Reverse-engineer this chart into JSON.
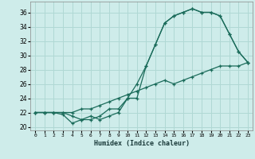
{
  "xlabel": "Humidex (Indice chaleur)",
  "bg_color": "#ceecea",
  "grid_color": "#b0d8d4",
  "line_color": "#1a6b5a",
  "xlim": [
    -0.5,
    23.5
  ],
  "ylim": [
    19.5,
    37.5
  ],
  "xticks": [
    0,
    1,
    2,
    3,
    4,
    5,
    6,
    7,
    8,
    9,
    10,
    11,
    12,
    13,
    14,
    15,
    16,
    17,
    18,
    19,
    20,
    21,
    22,
    23
  ],
  "yticks": [
    20,
    22,
    24,
    26,
    28,
    30,
    32,
    34,
    36
  ],
  "line1_x": [
    0,
    1,
    2,
    3,
    4,
    5,
    6,
    7,
    8,
    9,
    10,
    11,
    12,
    13,
    14,
    15,
    16,
    17,
    18,
    19,
    20,
    21,
    22,
    23
  ],
  "line1_y": [
    22,
    22,
    22,
    21.7,
    20.5,
    21,
    21,
    21.5,
    22.5,
    22.5,
    24,
    26,
    28.5,
    31.5,
    34.5,
    35.5,
    36,
    36.5,
    36,
    36,
    35.5,
    33,
    30.5,
    29
  ],
  "line2_x": [
    0,
    1,
    2,
    3,
    4,
    5,
    6,
    7,
    8,
    9,
    10,
    11,
    12,
    13,
    14,
    15,
    16,
    17,
    18,
    19,
    20,
    21,
    22,
    23
  ],
  "line2_y": [
    22,
    22,
    22,
    22,
    22,
    22.5,
    22.5,
    23,
    23.5,
    24,
    24.5,
    25,
    25.5,
    26,
    26.5,
    26,
    26.5,
    27,
    27.5,
    28,
    28.5,
    28.5,
    28.5,
    29
  ],
  "line3_x": [
    0,
    1,
    2,
    3,
    4,
    5,
    6,
    7,
    8,
    9,
    10,
    11,
    12,
    13,
    14,
    15,
    16,
    17,
    18,
    19,
    20,
    21,
    22,
    23
  ],
  "line3_y": [
    22,
    22,
    22,
    22,
    21.5,
    21,
    21.5,
    21,
    21.5,
    22,
    24,
    24,
    28.5,
    31.5,
    34.5,
    35.5,
    36,
    36.5,
    36,
    36,
    35.5,
    33,
    30.5,
    29
  ]
}
